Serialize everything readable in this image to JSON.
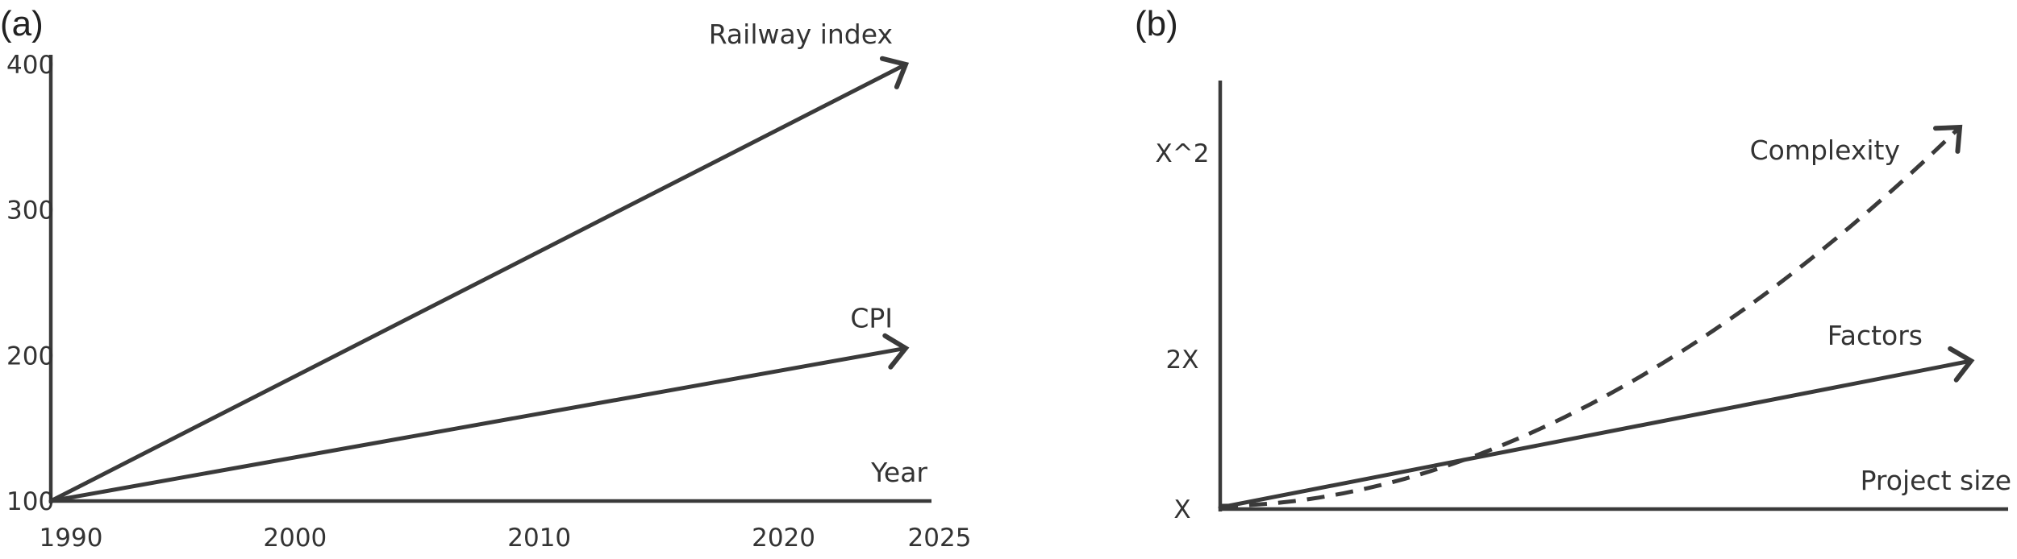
{
  "chart_data": [
    {
      "panel_label": "(a)",
      "type": "line",
      "xlabel": "Year",
      "ylabel": "",
      "x_ticks": [
        1990,
        2000,
        2010,
        2020,
        2025
      ],
      "y_ticks": [
        100,
        200,
        300,
        400
      ],
      "xlim": [
        1990,
        2026
      ],
      "ylim": [
        100,
        450
      ],
      "series": [
        {
          "name": "Railway index",
          "style": "solid-arrow",
          "x": [
            1990,
            2025
          ],
          "y": [
            100,
            400
          ]
        },
        {
          "name": "CPI",
          "style": "solid-arrow",
          "x": [
            1990,
            2025
          ],
          "y": [
            100,
            205
          ]
        }
      ]
    },
    {
      "panel_label": "(b)",
      "type": "line",
      "xlabel": "Project size",
      "ylabel": "",
      "x_ticks": [],
      "y_ticks": [
        "X",
        "2X",
        "X^2"
      ],
      "series": [
        {
          "name": "Complexity",
          "style": "dashed-arrow",
          "curve": "quadratic"
        },
        {
          "name": "Factors",
          "style": "solid-arrow",
          "curve": "linear"
        }
      ]
    }
  ],
  "colors": {
    "ink": "#3a3a3a",
    "text": "#333333",
    "background": "#ffffff"
  }
}
